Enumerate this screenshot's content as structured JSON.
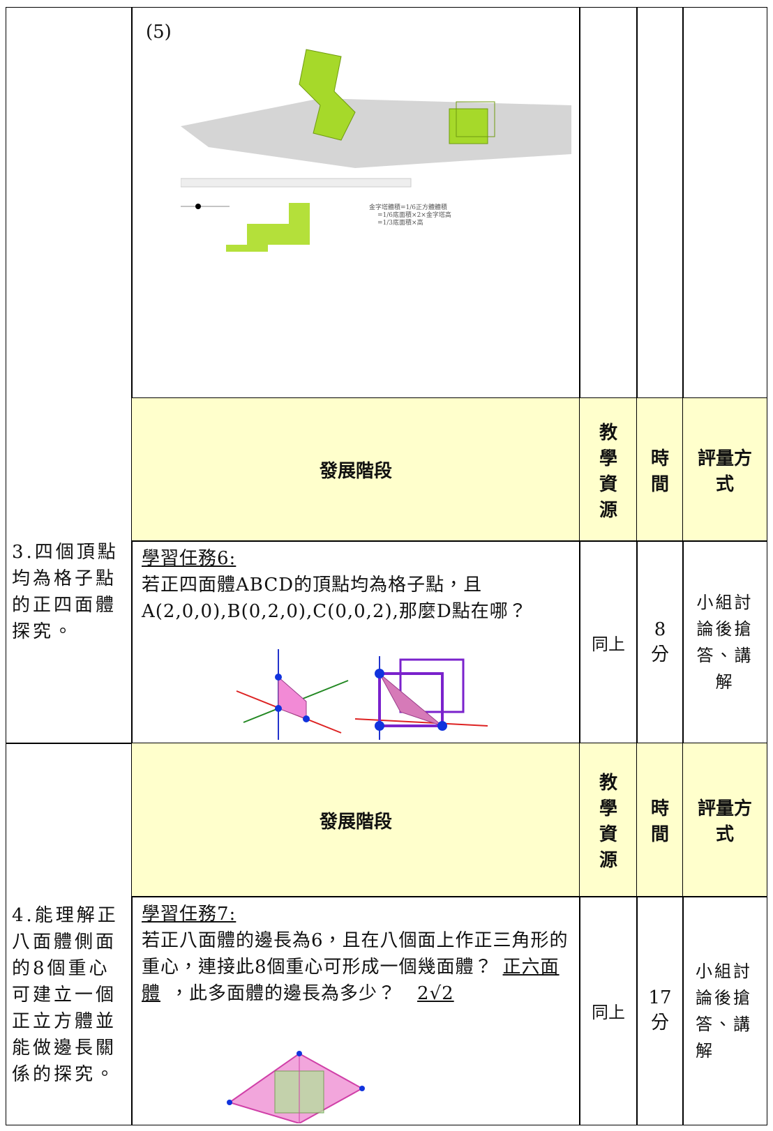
{
  "row1": {
    "label": "(5)",
    "figure_notes": [
      "金字塔體積=1/6正方體體積",
      "=1/6底面積×2×金字塔高",
      "=1/3底面積×高"
    ]
  },
  "sections": [
    {
      "objective": "3.四個頂點均為格子點的正四面體探究。",
      "header": {
        "stage": "發展階段",
        "resource": "教學資源",
        "time": "時間",
        "assessment": "評量方式"
      },
      "task": {
        "title": "學習任務6:",
        "text": "若正四面體ABCD的頂點均為格子點，且A(2,0,0),B(0,2,0),C(0,0,2),那麼D點在哪？",
        "resource": "同上",
        "time": "8分",
        "assessment": "小組討論後搶答、講解"
      }
    },
    {
      "objective": "4.能理解正八面體側面的8個重心可建立一個正立方體並能做邊長關係的探究。",
      "header": {
        "stage": "發展階段",
        "resource": "教學資源",
        "time": "時間",
        "assessment": "評量方式"
      },
      "task": {
        "title": "學習任務7:",
        "text_before": "若正八面體的邊長為6，且在八個面上作正三角形的重心，連接此8個重心可形成一個幾面體？",
        "answer1": "正六面體",
        "text_middle": "，此多面體的邊長為多少？",
        "answer2": "2√2",
        "resource": "同上",
        "time": "17分",
        "assessment": "小組討論後搶答、講解"
      }
    }
  ]
}
